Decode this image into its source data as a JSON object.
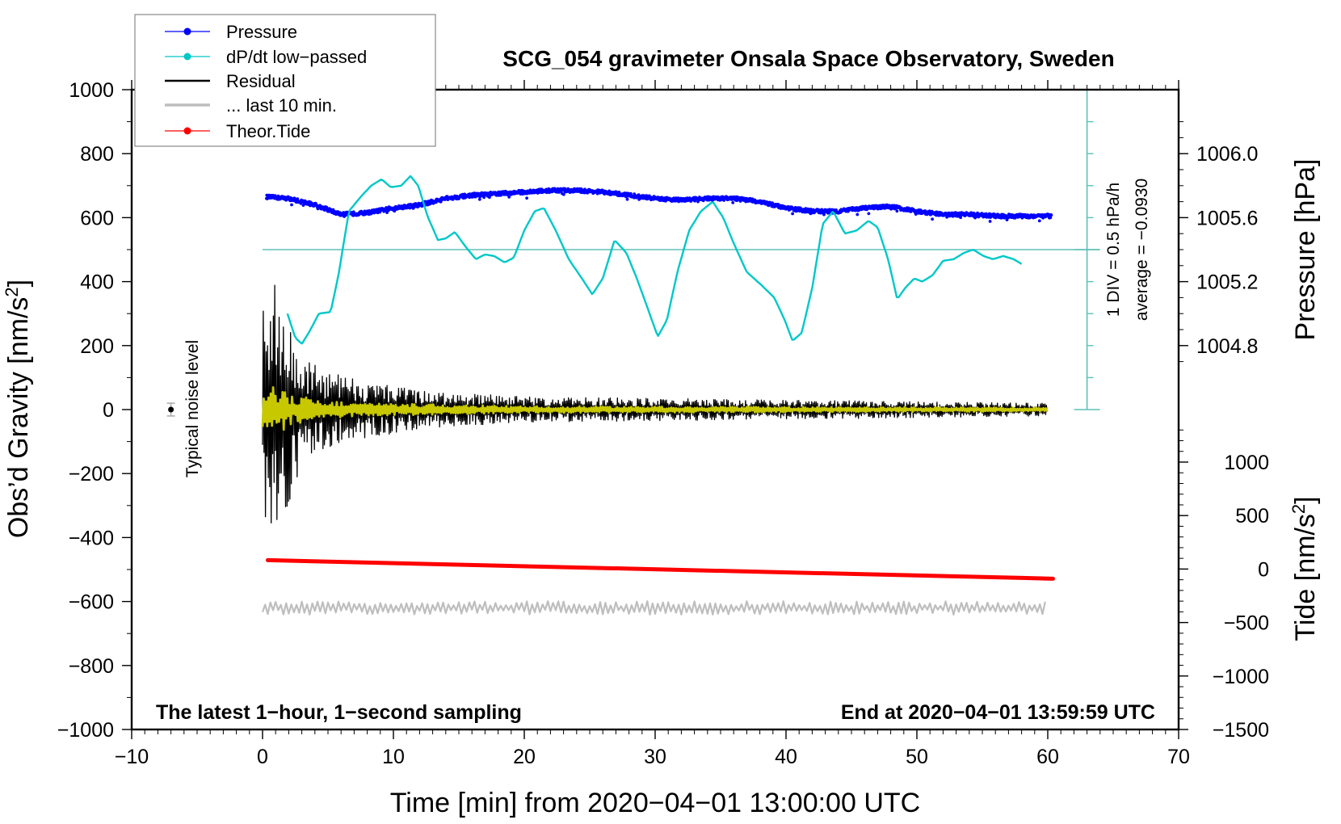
{
  "chart_data": {
    "type": "line",
    "title": "SCG_054 gravimeter Onsala Space Observatory, Sweden",
    "xlabel": "Time [min] from 2020−04−01 13:00:00 UTC",
    "ylabel": "Obs’d Gravity [nm/s",
    "ylabel_sup": "2",
    "ylabel_close": "]",
    "y2label": "Pressure [hPa]",
    "y3label": "Tide [nm/s",
    "y3label_sup": "2",
    "y3label_close": "]",
    "xlim": [
      -10,
      70
    ],
    "ylim": [
      -1000,
      1000
    ],
    "pressure_axis": {
      "ticks": [
        1004.8,
        1005.2,
        1005.6,
        1006.0
      ],
      "tick_labels": [
        "1004.8",
        "1005.2",
        "1005.6",
        "1006.0"
      ],
      "ref_gravity": 800,
      "ref_pressure": 1006.0,
      "hpa_per_gravity_unit": 0.002
    },
    "tide_axis": {
      "ylim": [
        -1500,
        1000
      ],
      "ticks": [
        -1500,
        -1000,
        -500,
        0,
        500,
        1000
      ],
      "tick_labels": [
        "−1500",
        "−1000",
        "−500",
        "0",
        "500",
        "1000"
      ]
    },
    "xticks": [
      -10,
      0,
      10,
      20,
      30,
      40,
      50,
      60,
      70
    ],
    "xtick_labels": [
      "−10",
      "0",
      "10",
      "20",
      "30",
      "40",
      "50",
      "60",
      "70"
    ],
    "yticks": [
      -1000,
      -800,
      -600,
      -400,
      -200,
      0,
      200,
      400,
      600,
      800,
      1000
    ],
    "ytick_labels": [
      "−1000",
      "−800",
      "−600",
      "−400",
      "−200",
      "0",
      "200",
      "400",
      "600",
      "800",
      "1000"
    ],
    "legend": {
      "placement": "top-left",
      "entries": [
        {
          "label": "Pressure",
          "color": "#0000ff",
          "marker": true
        },
        {
          "label": "dP/dt low−passed",
          "color": "#00c8c8",
          "marker": true
        },
        {
          "label": "Residual",
          "color": "#000000",
          "marker": false
        },
        {
          "label": "... last 10 min.",
          "color": "#bebebe",
          "marker": false
        },
        {
          "label": "Theor.Tide",
          "color": "#ff0000",
          "marker": true
        }
      ]
    },
    "annotations": {
      "bottom_left": "The latest 1−hour, 1−second sampling",
      "bottom_right": "End at 2020−04−01 13:59:59 UTC",
      "noise_label": "Typical noise level",
      "div_label": "1 DIV = 0.5 hPa/h",
      "average_label": "average = −0.0930"
    },
    "noise_marker": {
      "x": -7,
      "y": 0,
      "err": 20
    },
    "dpdt_reference": {
      "gravity_level": 500,
      "scale_x": 63,
      "scale_range": [
        0,
        1000
      ],
      "tick_step": 100
    },
    "series": [
      {
        "name": "Pressure",
        "color": "#0000ff",
        "axis": "pressure",
        "kind": "dots",
        "x": [
          0.3,
          2,
          4,
          6,
          8,
          10,
          12,
          14,
          16,
          18,
          20,
          22,
          24,
          26,
          28,
          30,
          32,
          34,
          36,
          38,
          40,
          42,
          44,
          46,
          48,
          50,
          52,
          54,
          56,
          58,
          60.3
        ],
        "y": [
          1005.73,
          1005.72,
          1005.68,
          1005.62,
          1005.63,
          1005.66,
          1005.68,
          1005.72,
          1005.74,
          1005.75,
          1005.76,
          1005.77,
          1005.77,
          1005.76,
          1005.74,
          1005.72,
          1005.71,
          1005.72,
          1005.72,
          1005.7,
          1005.66,
          1005.64,
          1005.64,
          1005.66,
          1005.67,
          1005.64,
          1005.62,
          1005.62,
          1005.61,
          1005.61,
          1005.61
        ],
        "noise": 0.012
      },
      {
        "name": "dP/dt low-passed",
        "color": "#00c8c8",
        "axis": "gravity",
        "x": [
          1.9,
          2.5,
          3.0,
          3.6,
          4.3,
          5.2,
          5.8,
          6.6,
          7.5,
          8.3,
          9.1,
          9.8,
          10.6,
          11.3,
          11.9,
          12.6,
          13.4,
          14.0,
          14.7,
          15.5,
          16.3,
          17.0,
          17.7,
          18.5,
          19.2,
          20.0,
          20.8,
          21.5,
          22.4,
          23.4,
          24.4,
          25.2,
          26.0,
          26.9,
          27.8,
          28.6,
          29.4,
          30.2,
          30.9,
          31.7,
          32.6,
          33.5,
          34.4,
          35.2,
          36.0,
          37.0,
          38.1,
          39.1,
          39.9,
          40.5,
          41.2,
          42.0,
          42.8,
          43.6,
          44.5,
          45.4,
          46.3,
          47.0,
          47.8,
          48.5,
          49.1,
          49.8,
          50.4,
          51.2,
          52.0,
          52.8,
          53.6,
          54.3,
          55.1,
          55.8,
          56.6,
          57.4,
          58.0
        ],
        "y": [
          300,
          225,
          205,
          245,
          300,
          305,
          420,
          620,
          665,
          700,
          720,
          695,
          700,
          730,
          700,
          605,
          530,
          535,
          555,
          510,
          470,
          485,
          480,
          460,
          475,
          560,
          620,
          630,
          560,
          470,
          410,
          360,
          410,
          530,
          490,
          410,
          320,
          228,
          280,
          430,
          560,
          620,
          650,
          600,
          520,
          430,
          390,
          350,
          280,
          215,
          240,
          380,
          580,
          620,
          550,
          560,
          590,
          570,
          470,
          345,
          380,
          410,
          400,
          420,
          465,
          470,
          490,
          500,
          480,
          470,
          480,
          470,
          455
        ]
      },
      {
        "name": "Residual",
        "color": "#000000",
        "axis": "gravity",
        "kind": "noise",
        "x_range": [
          0,
          60
        ],
        "envelope": [
          [
            0,
            320
          ],
          [
            1,
            420
          ],
          [
            2,
            300
          ],
          [
            3,
            160
          ],
          [
            5,
            120
          ],
          [
            8,
            90
          ],
          [
            12,
            60
          ],
          [
            20,
            40
          ],
          [
            30,
            35
          ],
          [
            40,
            30
          ],
          [
            50,
            25
          ],
          [
            60,
            20
          ]
        ]
      },
      {
        "name": "Filtered residual",
        "color": "#c8c800",
        "axis": "gravity",
        "kind": "noise",
        "x_range": [
          0,
          60
        ],
        "envelope": [
          [
            0,
            60
          ],
          [
            1,
            75
          ],
          [
            2,
            55
          ],
          [
            4,
            30
          ],
          [
            8,
            20
          ],
          [
            20,
            10
          ],
          [
            40,
            8
          ],
          [
            60,
            6
          ]
        ]
      },
      {
        "name": "... last 10 min.",
        "color": "#bebebe",
        "axis": "gravity",
        "kind": "noise",
        "x_range": [
          0,
          60
        ],
        "offset": -620,
        "envelope": [
          [
            0,
            30
          ],
          [
            60,
            30
          ]
        ]
      },
      {
        "name": "Theor.Tide",
        "color": "#ff0000",
        "axis": "tide",
        "x": [
          0.4,
          60.4
        ],
        "y": [
          83,
          -90
        ]
      }
    ]
  }
}
